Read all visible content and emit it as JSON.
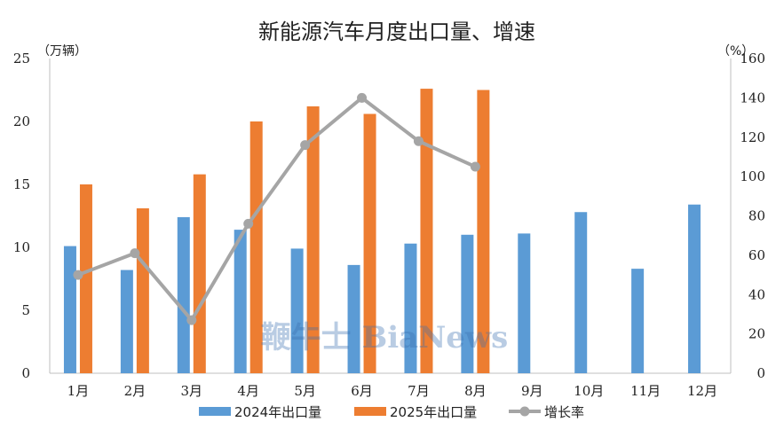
{
  "chart_data": {
    "type": "bar",
    "title": "新能源汽车月度出口量、增速",
    "left_unit": "（万辆）",
    "right_unit": "（%）",
    "categories": [
      "1月",
      "2月",
      "3月",
      "4月",
      "5月",
      "6月",
      "7月",
      "8月",
      "9月",
      "10月",
      "11月",
      "12月"
    ],
    "series": [
      {
        "name": "2024年出口量",
        "type": "bar",
        "axis": "left",
        "color": "#5B9BD5",
        "values": [
          10.1,
          8.2,
          12.4,
          11.4,
          9.9,
          8.6,
          10.3,
          11.0,
          11.1,
          12.8,
          8.3,
          13.4
        ]
      },
      {
        "name": "2025年出口量",
        "type": "bar",
        "axis": "left",
        "color": "#ED7D31",
        "values": [
          15.0,
          13.1,
          15.8,
          20.0,
          21.2,
          20.6,
          22.6,
          22.5,
          null,
          null,
          null,
          null
        ]
      },
      {
        "name": "增长率",
        "type": "line",
        "axis": "right",
        "color": "#A5A5A5",
        "values": [
          50,
          61,
          27,
          76,
          116,
          140,
          118,
          105,
          null,
          null,
          null,
          null
        ]
      }
    ],
    "left_axis": {
      "min": 0,
      "max": 25,
      "ticks": [
        0,
        5,
        10,
        15,
        20,
        25
      ]
    },
    "right_axis": {
      "min": 0,
      "max": 160,
      "ticks": [
        0,
        20,
        40,
        60,
        80,
        100,
        120,
        140,
        160
      ]
    },
    "grid": false,
    "legend": "bottom",
    "watermark": "鞭牛士 BiaNews"
  }
}
